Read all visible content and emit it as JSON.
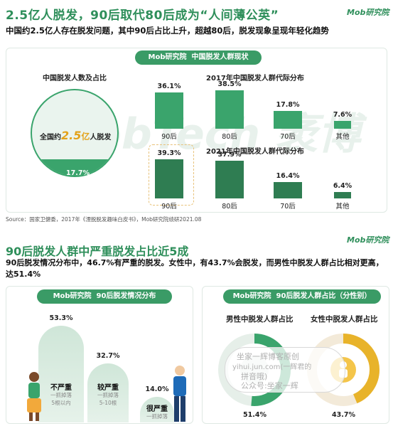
{
  "brand": "Mob研究院",
  "section1": {
    "title": "2.5亿人脱发，90后取代80后成为“人间薄公英”",
    "subtitle": "中国约2.5亿人存在脱发问题，其中90后占比上升，超越80后，脱发现象呈现年轻化趋势",
    "panel_brand": "Mob研究院",
    "panel_title": "中国脱发人群现状",
    "circle_label": "中国脱发人数及占比",
    "circle_text_prefix": "全国约",
    "circle_text_number": "2.5",
    "circle_text_unit": "亿",
    "circle_text_suffix": "人脱发",
    "circle_percent": "17.7%",
    "source": "Source：国家卫健委，2017年《湮脱脱发趣味白皮书》，Mob研究院绩研2021.08"
  },
  "section2": {
    "title": "90后脱发人群中严重脱发占比近5成",
    "subtitle": "90后脱发情况分布中，46.7%有严重的脱发。女性中，有43.7%会脱发，而男性中脱发人群占比相对更高，达51.4%",
    "left_panel_brand": "Mob研究院",
    "left_panel_title": "90后脱发情况分布",
    "right_panel_brand": "Mob研究院",
    "right_panel_title": "90后脱发人群占比（分性别）",
    "male_label": "男性中脱发人群占比",
    "female_label": "女性中脱发人群占比",
    "overlay_text": [
      "坐家一辉博客原创",
      "yihui.jun.com(一辉君的",
      "拼音哦)",
      "公众号:坐家一辉"
    ]
  },
  "watermark": "MobTech 袤博",
  "colors": {
    "accent": "#2f8f5b",
    "bar": "#3aa46c",
    "bar_dark": "#2f7d52",
    "highlight": "#e8c27a"
  },
  "chart_data": [
    {
      "type": "bar",
      "title": "2017年中国脱发人群代际分布",
      "categories": [
        "90后",
        "80后",
        "70后",
        "其他"
      ],
      "values": [
        36.1,
        38.5,
        17.8,
        7.6
      ],
      "value_labels": [
        "36.1%",
        "38.5%",
        "17.8%",
        "7.6%"
      ]
    },
    {
      "type": "bar",
      "title": "2021年中国脱发人群代际分布",
      "categories": [
        "90后",
        "80后",
        "70后",
        "其他"
      ],
      "values": [
        39.3,
        37.9,
        16.4,
        6.4
      ],
      "value_labels": [
        "39.3%",
        "37.9%",
        "16.4%",
        "6.4%"
      ]
    },
    {
      "type": "bar",
      "title": "90后脱发情况分布",
      "categories": [
        "不严重",
        "较严重",
        "很严重"
      ],
      "values": [
        53.3,
        32.7,
        14.0
      ],
      "value_labels": [
        "53.3%",
        "32.7%",
        "14.0%"
      ],
      "descriptions": [
        [
          "一抓掉落",
          "5根以内"
        ],
        [
          "一抓掉落",
          "5-10根"
        ],
        [
          "一抓掉落",
          ""
        ]
      ]
    },
    {
      "type": "pie",
      "title": "90后脱发人群占比（分性别）",
      "categories": [
        "男性",
        "女性"
      ],
      "values": [
        51.4,
        43.7
      ],
      "value_labels": [
        "51.4%",
        "43.7%"
      ]
    }
  ]
}
